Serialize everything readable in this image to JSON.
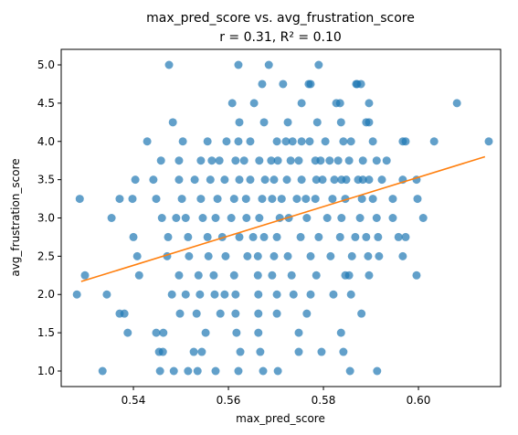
{
  "chart_data": {
    "type": "scatter",
    "title": "max_pred_score vs. avg_frustration_score",
    "subtitle": "r = 0.31,  R² = 0.10",
    "xlabel": "max_pred_score",
    "ylabel": "avg_frustration_score",
    "xlim": [
      0.5248,
      0.6173
    ],
    "ylim": [
      0.797,
      5.203
    ],
    "xticks": [
      {
        "value": 0.54,
        "label": "0.54"
      },
      {
        "value": 0.56,
        "label": "0.56"
      },
      {
        "value": 0.58,
        "label": "0.58"
      },
      {
        "value": 0.6,
        "label": "0.60"
      }
    ],
    "yticks": [
      {
        "value": 1,
        "label": "1.0"
      },
      {
        "value": 1.5,
        "label": "1.5"
      },
      {
        "value": 2,
        "label": "2.0"
      },
      {
        "value": 2.5,
        "label": "2.5"
      },
      {
        "value": 3,
        "label": "3.0"
      },
      {
        "value": 3.5,
        "label": "3.5"
      },
      {
        "value": 4,
        "label": "4.0"
      },
      {
        "value": 4.5,
        "label": "4.5"
      },
      {
        "value": 5,
        "label": "5.0"
      }
    ],
    "color": "#1f77b4",
    "x": [
      0.5475,
      0.5621,
      0.5685,
      0.579,
      0.5671,
      0.5715,
      0.5769,
      0.5773,
      0.5869,
      0.5879,
      0.5871,
      0.5608,
      0.5654,
      0.5754,
      0.5827,
      0.5835,
      0.5896,
      0.6081,
      0.5483,
      0.5623,
      0.5675,
      0.5725,
      0.5787,
      0.5837,
      0.589,
      0.5896,
      0.5429,
      0.5504,
      0.5556,
      0.5596,
      0.5621,
      0.5646,
      0.5702,
      0.5721,
      0.5735,
      0.5754,
      0.5771,
      0.5804,
      0.5842,
      0.5858,
      0.5904,
      0.5967,
      0.5973,
      0.6033,
      0.6148,
      0.5458,
      0.5496,
      0.5542,
      0.5565,
      0.5581,
      0.5615,
      0.5633,
      0.5665,
      0.569,
      0.5704,
      0.5731,
      0.5748,
      0.5783,
      0.5794,
      0.5813,
      0.5831,
      0.5854,
      0.5883,
      0.5912,
      0.5933,
      0.5404,
      0.5442,
      0.5496,
      0.5529,
      0.5562,
      0.5592,
      0.5623,
      0.5646,
      0.5677,
      0.5696,
      0.5723,
      0.5754,
      0.5785,
      0.5798,
      0.5823,
      0.5838,
      0.5848,
      0.5873,
      0.5883,
      0.5896,
      0.5923,
      0.5967,
      0.5996,
      0.5287,
      0.5371,
      0.5398,
      0.5448,
      0.5502,
      0.5542,
      0.5577,
      0.5612,
      0.5637,
      0.5671,
      0.5692,
      0.5712,
      0.5744,
      0.5763,
      0.5783,
      0.5819,
      0.5846,
      0.5881,
      0.5904,
      0.5946,
      0.5998,
      0.5354,
      0.546,
      0.549,
      0.551,
      0.5546,
      0.5573,
      0.5606,
      0.5638,
      0.5665,
      0.5708,
      0.5727,
      0.5765,
      0.5808,
      0.5838,
      0.5877,
      0.5912,
      0.5946,
      0.601,
      0.54,
      0.5473,
      0.5515,
      0.5556,
      0.5587,
      0.5623,
      0.5652,
      0.5675,
      0.5702,
      0.5752,
      0.579,
      0.5835,
      0.5867,
      0.589,
      0.5915,
      0.5958,
      0.5973,
      0.5408,
      0.5471,
      0.5517,
      0.5558,
      0.5594,
      0.564,
      0.5662,
      0.5696,
      0.5725,
      0.5773,
      0.5815,
      0.586,
      0.5894,
      0.5917,
      0.5967,
      0.5298,
      0.5412,
      0.5496,
      0.5537,
      0.5569,
      0.5612,
      0.5662,
      0.5692,
      0.5733,
      0.5785,
      0.5846,
      0.5854,
      0.5896,
      0.5996,
      0.5281,
      0.5344,
      0.5481,
      0.551,
      0.554,
      0.5571,
      0.5592,
      0.5615,
      0.5663,
      0.5702,
      0.5737,
      0.5773,
      0.5821,
      0.5858,
      0.5371,
      0.5381,
      0.5498,
      0.5533,
      0.5583,
      0.5615,
      0.5663,
      0.5702,
      0.5765,
      0.588,
      0.5388,
      0.5448,
      0.5463,
      0.5552,
      0.5617,
      0.5663,
      0.5748,
      0.5837,
      0.5454,
      0.5462,
      0.5527,
      0.5544,
      0.5625,
      0.5667,
      0.5748,
      0.5796,
      0.5842,
      0.5335,
      0.5456,
      0.5485,
      0.5515,
      0.5535,
      0.5573,
      0.5621,
      0.5673,
      0.5704,
      0.5856,
      0.5913
    ],
    "y": [
      5,
      5,
      5,
      5,
      4.75,
      4.75,
      4.75,
      4.75,
      4.75,
      4.75,
      4.75,
      4.5,
      4.5,
      4.5,
      4.5,
      4.5,
      4.5,
      4.5,
      4.25,
      4.25,
      4.25,
      4.25,
      4.25,
      4.25,
      4.25,
      4.25,
      4,
      4,
      4,
      4,
      4,
      4,
      4,
      4,
      4,
      4,
      4,
      4,
      4,
      4,
      4,
      4,
      4,
      4,
      4,
      3.75,
      3.75,
      3.75,
      3.75,
      3.75,
      3.75,
      3.75,
      3.75,
      3.75,
      3.75,
      3.75,
      3.75,
      3.75,
      3.75,
      3.75,
      3.75,
      3.75,
      3.75,
      3.75,
      3.75,
      3.5,
      3.5,
      3.5,
      3.5,
      3.5,
      3.5,
      3.5,
      3.5,
      3.5,
      3.5,
      3.5,
      3.5,
      3.5,
      3.5,
      3.5,
      3.5,
      3.5,
      3.5,
      3.5,
      3.5,
      3.5,
      3.5,
      3.5,
      3.25,
      3.25,
      3.25,
      3.25,
      3.25,
      3.25,
      3.25,
      3.25,
      3.25,
      3.25,
      3.25,
      3.25,
      3.25,
      3.25,
      3.25,
      3.25,
      3.25,
      3.25,
      3.25,
      3.25,
      3.25,
      3,
      3,
      3,
      3,
      3,
      3,
      3,
      3,
      3,
      3,
      3,
      3,
      3,
      3,
      3,
      3,
      3,
      3,
      2.75,
      2.75,
      2.75,
      2.75,
      2.75,
      2.75,
      2.75,
      2.75,
      2.75,
      2.75,
      2.75,
      2.75,
      2.75,
      2.75,
      2.75,
      2.75,
      2.75,
      2.5,
      2.5,
      2.5,
      2.5,
      2.5,
      2.5,
      2.5,
      2.5,
      2.5,
      2.5,
      2.5,
      2.5,
      2.5,
      2.5,
      2.5,
      2.25,
      2.25,
      2.25,
      2.25,
      2.25,
      2.25,
      2.25,
      2.25,
      2.25,
      2.25,
      2.25,
      2.25,
      2.25,
      2.25,
      2,
      2,
      2,
      2,
      2,
      2,
      2,
      2,
      2,
      2,
      2,
      2,
      2,
      2,
      1.75,
      1.75,
      1.75,
      1.75,
      1.75,
      1.75,
      1.75,
      1.75,
      1.75,
      1.75,
      1.5,
      1.5,
      1.5,
      1.5,
      1.5,
      1.5,
      1.5,
      1.5,
      1.25,
      1.25,
      1.25,
      1.25,
      1.25,
      1.25,
      1.25,
      1.25,
      1.25,
      1,
      1,
      1,
      1,
      1,
      1,
      1,
      1,
      1,
      1,
      1
    ],
    "fit": {
      "x": [
        0.529,
        0.614
      ],
      "y": [
        2.17,
        3.8
      ],
      "color": "#ff7f0e"
    }
  }
}
